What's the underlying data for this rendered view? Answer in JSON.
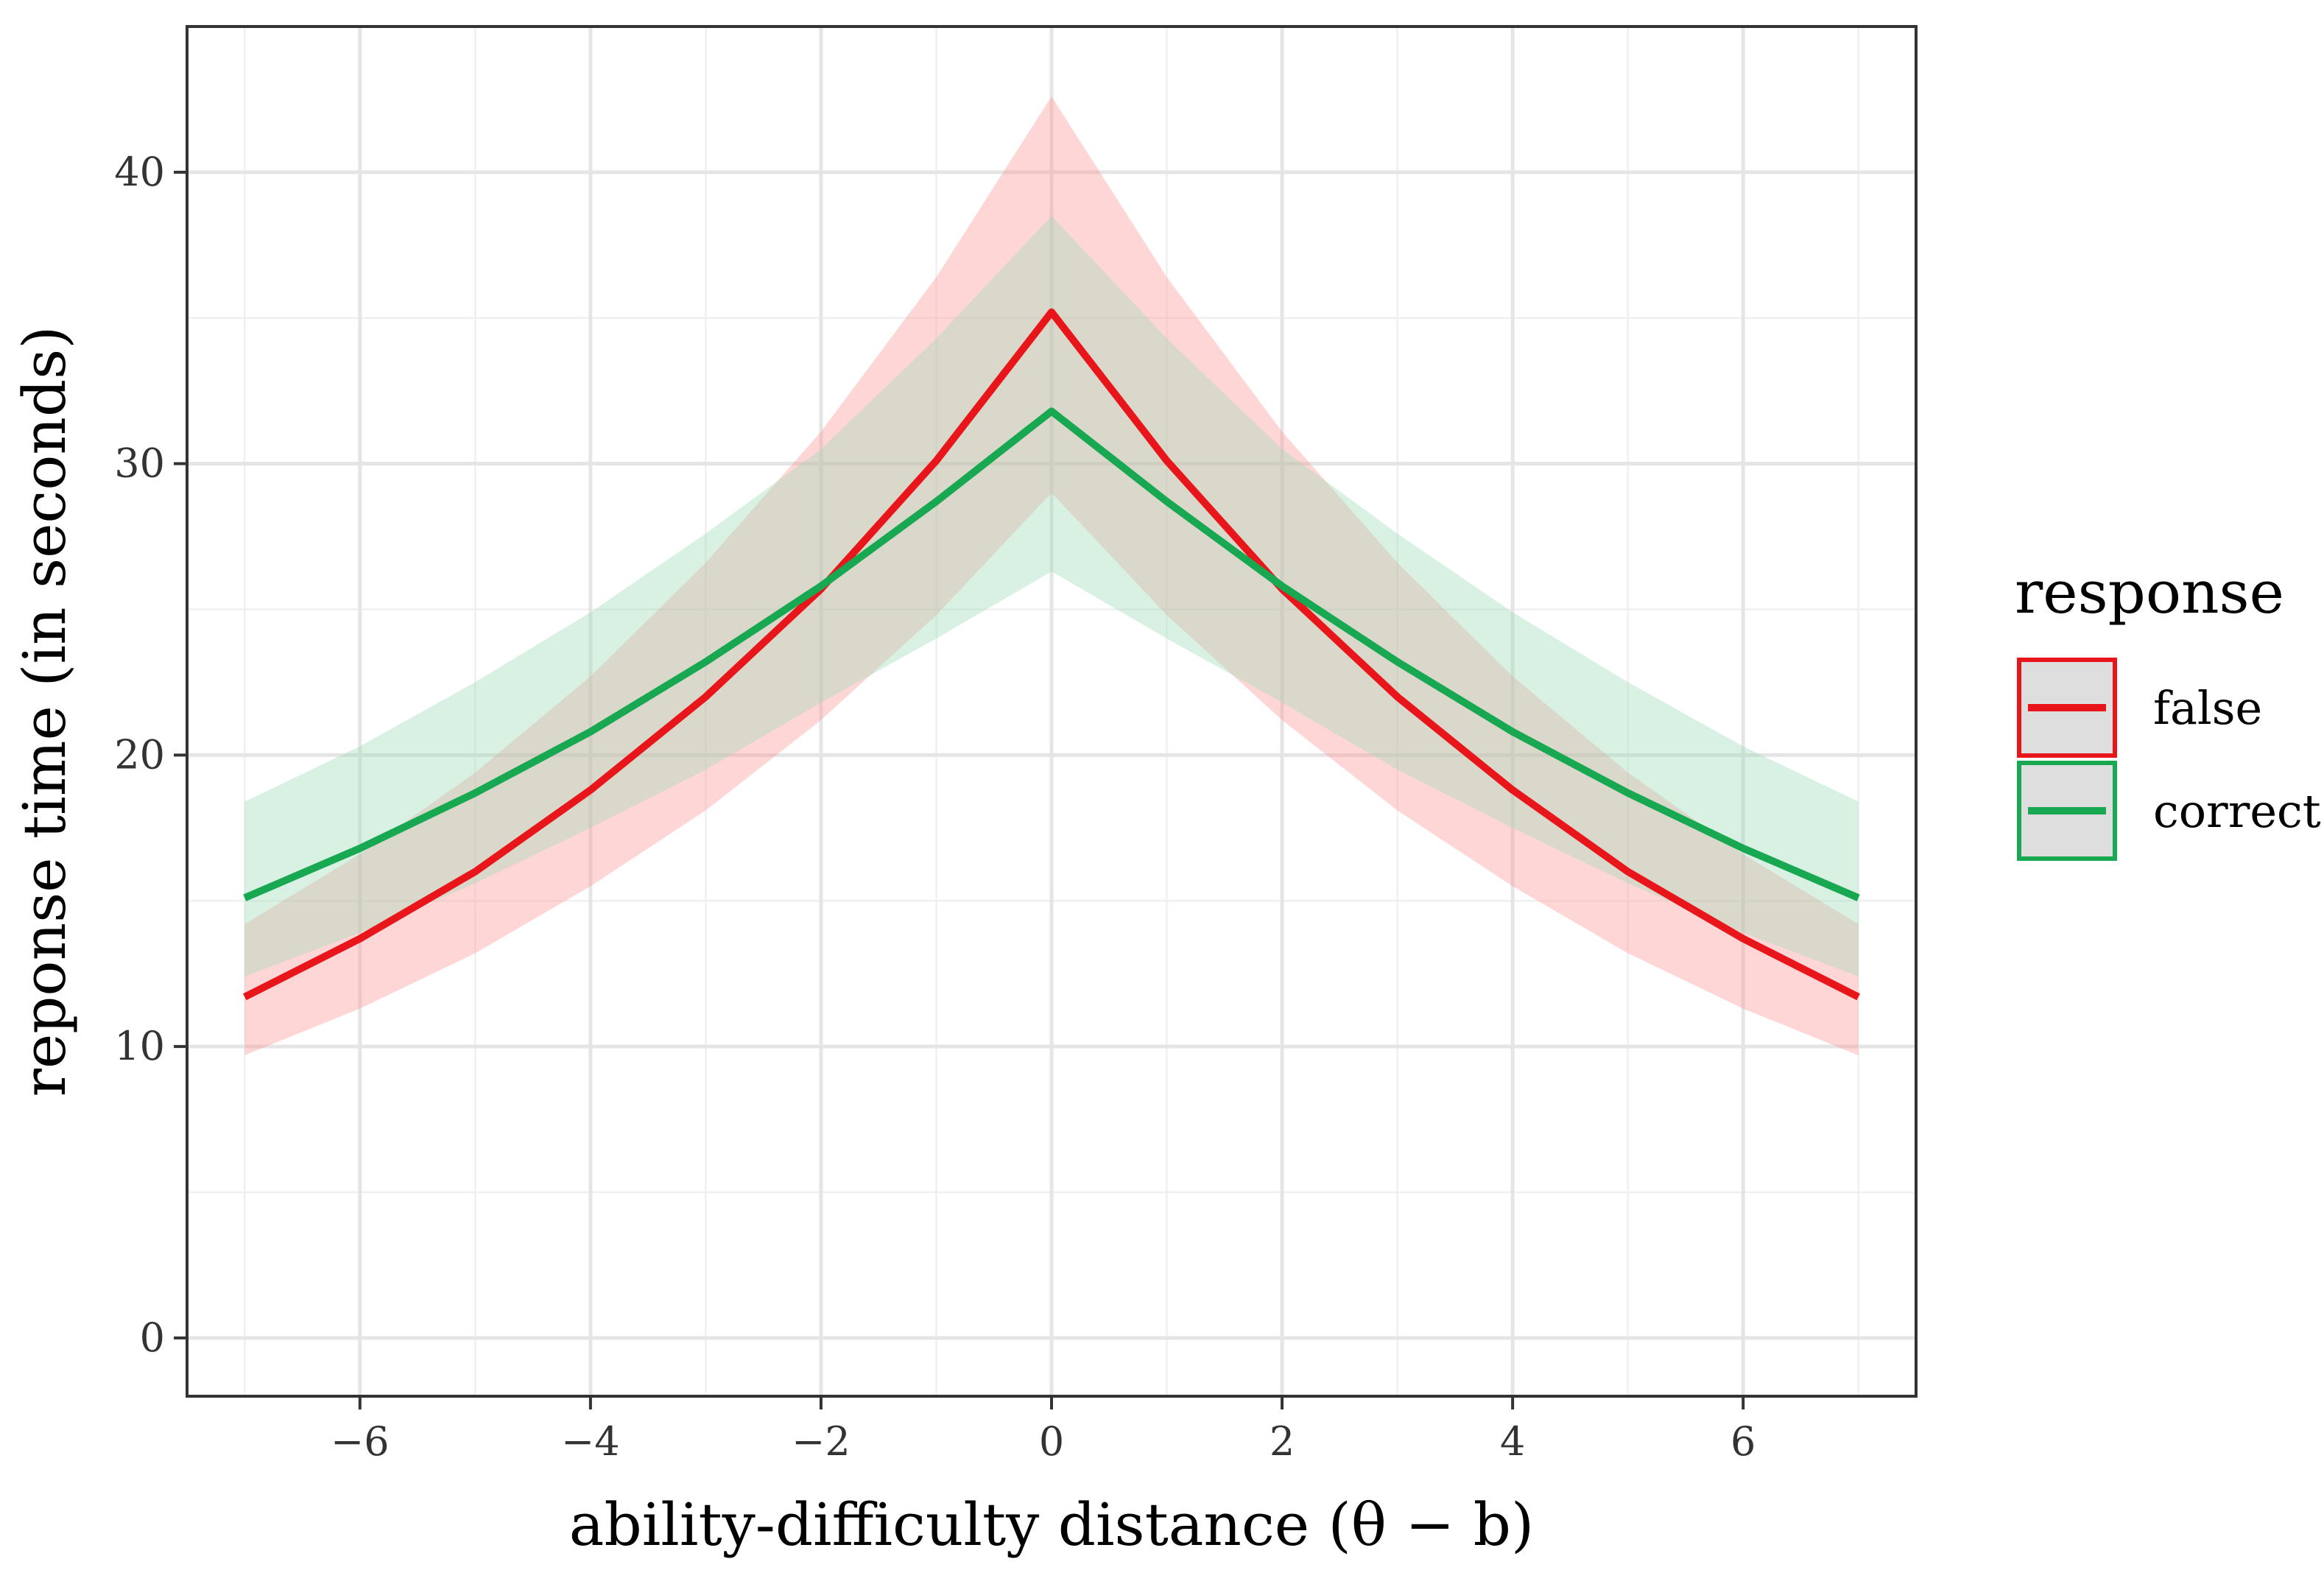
{
  "chart_data": {
    "type": "line",
    "title": "",
    "xlabel": "ability-difficulty distance (θ − b)",
    "ylabel": "reponse time (in seconds)",
    "xlim": [
      -7.5,
      7.5
    ],
    "ylim": [
      -2,
      45
    ],
    "x_ticks": [
      -6,
      -4,
      -2,
      0,
      2,
      4,
      6
    ],
    "x_tick_labels": [
      "−6",
      "−4",
      "−2",
      "0",
      "2",
      "4",
      "6"
    ],
    "y_ticks": [
      0,
      10,
      20,
      30,
      40
    ],
    "y_tick_labels": [
      "0",
      "10",
      "20",
      "30",
      "40"
    ],
    "grid": true,
    "legend": {
      "title": "response",
      "position": "right"
    },
    "series": [
      {
        "name": "false",
        "color": "#e8161b",
        "band_color": "#ff9999",
        "x": [
          -7,
          -6,
          -5,
          -4,
          -3,
          -2,
          -1,
          0,
          1,
          2,
          3,
          4,
          5,
          6,
          7
        ],
        "y": [
          11.7,
          13.7,
          16.0,
          18.8,
          22.0,
          25.7,
          30.1,
          35.2,
          30.1,
          25.7,
          22.0,
          18.8,
          16.0,
          13.7,
          11.7
        ],
        "lower": [
          9.7,
          11.3,
          13.2,
          15.5,
          18.1,
          21.2,
          24.8,
          29.0,
          24.8,
          21.2,
          18.1,
          15.5,
          13.2,
          11.3,
          9.7
        ],
        "upper": [
          14.2,
          16.6,
          19.4,
          22.7,
          26.6,
          31.1,
          36.4,
          42.6,
          36.4,
          31.1,
          26.6,
          22.7,
          19.4,
          16.6,
          14.2
        ]
      },
      {
        "name": "correct",
        "color": "#18a852",
        "band_color": "#9fdcb8",
        "x": [
          -7,
          -6,
          -5,
          -4,
          -3,
          -2,
          -1,
          0,
          1,
          2,
          3,
          4,
          5,
          6,
          7
        ],
        "y": [
          15.1,
          16.8,
          18.7,
          20.8,
          23.2,
          25.8,
          28.7,
          31.8,
          28.7,
          25.8,
          23.2,
          20.8,
          18.7,
          16.8,
          15.1
        ],
        "lower": [
          12.4,
          13.9,
          15.6,
          17.5,
          19.5,
          21.8,
          24.0,
          26.3,
          24.0,
          21.8,
          19.5,
          17.5,
          15.6,
          13.9,
          12.4
        ],
        "upper": [
          18.4,
          20.3,
          22.5,
          24.9,
          27.6,
          30.5,
          34.3,
          38.5,
          34.3,
          30.5,
          27.6,
          24.9,
          22.5,
          20.3,
          18.4
        ]
      }
    ]
  }
}
